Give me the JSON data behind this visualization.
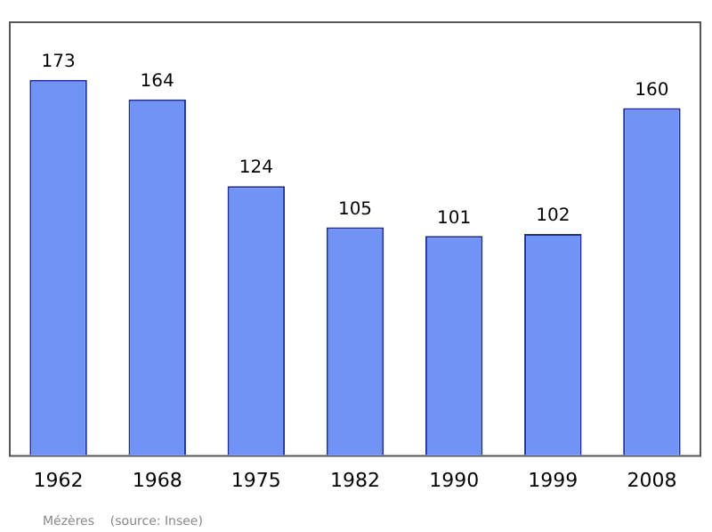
{
  "chart_data": {
    "type": "bar",
    "categories": [
      "1962",
      "1968",
      "1975",
      "1982",
      "1990",
      "1999",
      "2008"
    ],
    "values": [
      173,
      164,
      124,
      105,
      101,
      102,
      160
    ],
    "color": "#7093f5",
    "data_labels": true,
    "grid": false,
    "legend": false,
    "annotations": [
      "Mézères    (source: Insee)"
    ]
  }
}
